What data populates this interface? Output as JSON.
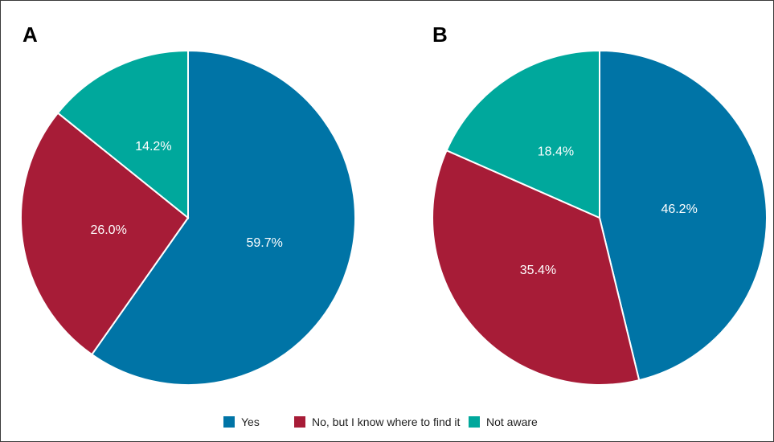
{
  "chart_data": [
    {
      "type": "pie",
      "panel_label": "A",
      "categories": [
        "Yes",
        "No, but I know where to find it",
        "Not aware"
      ],
      "values": [
        59.7,
        26.0,
        14.2
      ],
      "value_labels": [
        "59.7%",
        "26.0%",
        "14.2%"
      ]
    },
    {
      "type": "pie",
      "panel_label": "B",
      "categories": [
        "Yes",
        "No, but I know where to find it",
        "Not aware"
      ],
      "values": [
        46.2,
        35.4,
        18.4
      ],
      "value_labels": [
        "46.2%",
        "35.4%",
        "18.4%"
      ]
    }
  ],
  "legend": {
    "placement": "bottom-center",
    "items": [
      {
        "label": "Yes",
        "color": "#0074a6"
      },
      {
        "label": "No, but I know where to find it",
        "color": "#a71c37"
      },
      {
        "label": "Not aware",
        "color": "#00a89c"
      }
    ]
  }
}
